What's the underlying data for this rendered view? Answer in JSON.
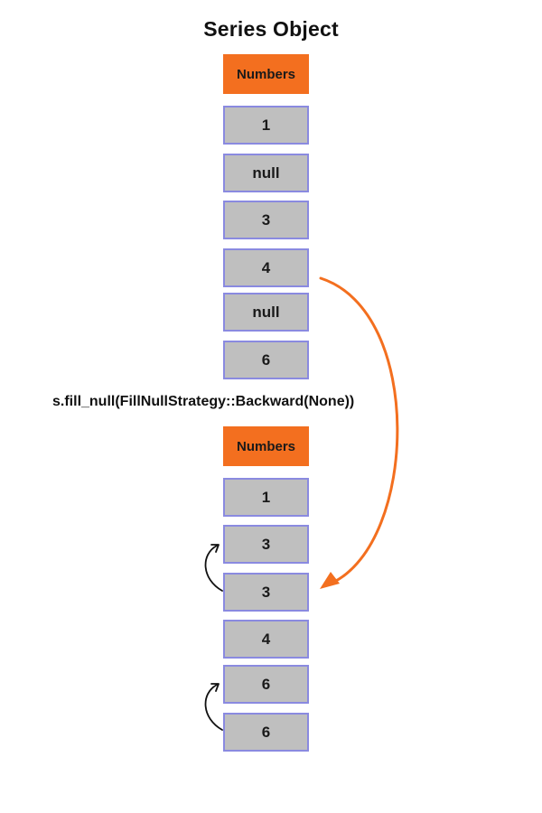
{
  "title": "Series Object",
  "original_series": {
    "header": "Numbers",
    "values": [
      "1",
      "null",
      "3",
      "4",
      "null",
      "6"
    ]
  },
  "operation": "s.fill_null(FillNullStrategy::Backward(None))",
  "result_series": {
    "header": "Numbers",
    "values": [
      "1",
      "3",
      "3",
      "4",
      "6",
      "6"
    ]
  },
  "colors": {
    "header": "#f36f1f",
    "cell_fill": "#bfbfbf",
    "cell_border": "#8a8ae0",
    "highlight_arrow": "#f36f1f",
    "fill_arrow": "#111111"
  }
}
